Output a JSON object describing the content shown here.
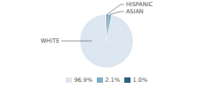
{
  "chart_data": {
    "type": "pie",
    "categories": [
      "WHITE",
      "ASIAN",
      "HISPANIC"
    ],
    "values": [
      96.9,
      2.1,
      1.0
    ],
    "value_labels": [
      "96.9%",
      "2.1%",
      "1.0%"
    ],
    "colors": [
      "#dce6f0",
      "#7cafc6",
      "#2e5f7e"
    ],
    "legend": "bottom"
  }
}
